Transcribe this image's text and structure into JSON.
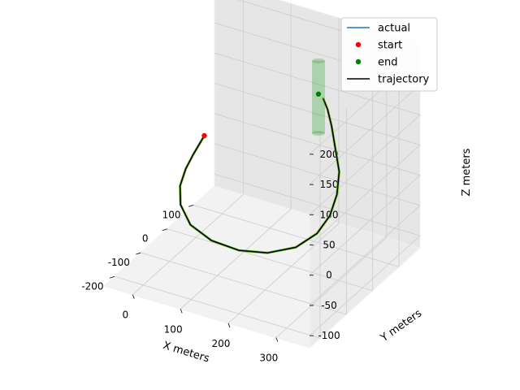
{
  "chart_data": {
    "type": "scatter",
    "projection": "3d",
    "title": "",
    "xlabel": "X meters",
    "ylabel": "Y meters",
    "zlabel": "Z meters",
    "xlim": [
      -60,
      370
    ],
    "ylim": [
      -240,
      180
    ],
    "zlim": [
      -120,
      220
    ],
    "xticks": [
      0,
      100,
      200,
      300
    ],
    "yticks": [
      -200,
      -100,
      0,
      100
    ],
    "zticks": [
      -100,
      -50,
      0,
      50,
      100,
      150,
      200
    ],
    "grid": true,
    "legend_position": "top-right",
    "colors": {
      "actual": "#1f77b4",
      "start": "#ff0000",
      "end": "#008000",
      "trajectory": "#000000",
      "goal_region": "#2ca02c",
      "pane": "#f2f2f2",
      "grid": "#cccccc"
    },
    "legend": [
      {
        "label": "actual",
        "kind": "line",
        "color": "#1f77b4"
      },
      {
        "label": "start",
        "kind": "dot",
        "color": "#ff0000"
      },
      {
        "label": "end",
        "kind": "dot",
        "color": "#008000"
      },
      {
        "label": "trajectory",
        "kind": "line",
        "color": "#000000"
      }
    ],
    "points": [
      {
        "name": "start",
        "x": 15,
        "y": 5,
        "z": 50
      },
      {
        "name": "end",
        "x": 185,
        "y": 130,
        "z": 110
      }
    ],
    "goal_region": {
      "shape": "cylinder",
      "x": 185,
      "y": 130,
      "radius": 8,
      "z_min": 45,
      "z_max": 165
    },
    "series": [
      {
        "name": "trajectory",
        "x": [
          15,
          12,
          10,
          12,
          22,
          45,
          85,
          140,
          200,
          255,
          300,
          325,
          330,
          320,
          300,
          270,
          240,
          215,
          195
        ],
        "y": [
          5,
          -10,
          -30,
          -60,
          -100,
          -140,
          -175,
          -195,
          -200,
          -190,
          -165,
          -130,
          -90,
          -45,
          0,
          40,
          80,
          110,
          130
        ],
        "z": [
          50,
          40,
          30,
          20,
          10,
          0,
          -10,
          -15,
          -15,
          -10,
          0,
          15,
          30,
          45,
          60,
          75,
          90,
          100,
          105
        ]
      }
    ]
  }
}
